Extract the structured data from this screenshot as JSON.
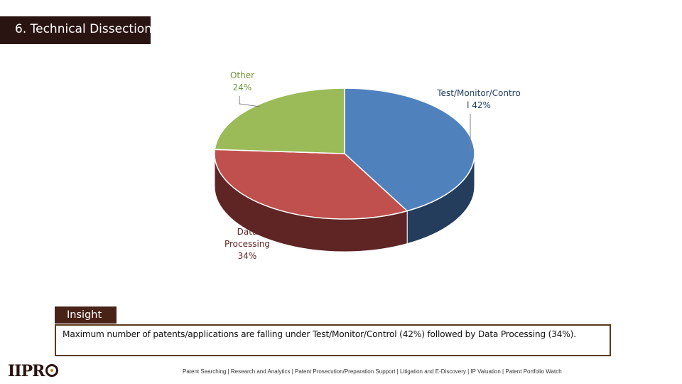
{
  "slide": {
    "title": "6. Technical Dissection"
  },
  "chart_data": {
    "type": "pie",
    "categories": [
      "Test/Monitor/Control",
      "Data Processing",
      "Other"
    ],
    "values": [
      42,
      34,
      24
    ],
    "data_labels": [
      [
        "Test/Monitor/Contro",
        "l 42%"
      ],
      [
        "Data",
        "Processing",
        "34%"
      ],
      [
        "Other",
        "24%"
      ]
    ],
    "colors": [
      "#4f81bd",
      "#c0504d",
      "#9bbb59"
    ],
    "side_colors": [
      "#243d5c",
      "#5e2524",
      "#4a5c2a"
    ],
    "label_colors": [
      "#1f3a5f",
      "#632423",
      "#76923c"
    ],
    "style": "3d",
    "legend": "none"
  },
  "insight": {
    "heading": "Insight",
    "text": "Maximum number of patents/applications are falling under Test/Monitor/Control (42%) followed by Data Processing (34%)."
  },
  "footer": {
    "logo_text": "IIPR",
    "services": "Patent Searching | Research and Analytics | Patent Prosecution/Preparation Support | Litigation and E-Discovery | IP Valuation | Patent Portfolio Watch"
  }
}
